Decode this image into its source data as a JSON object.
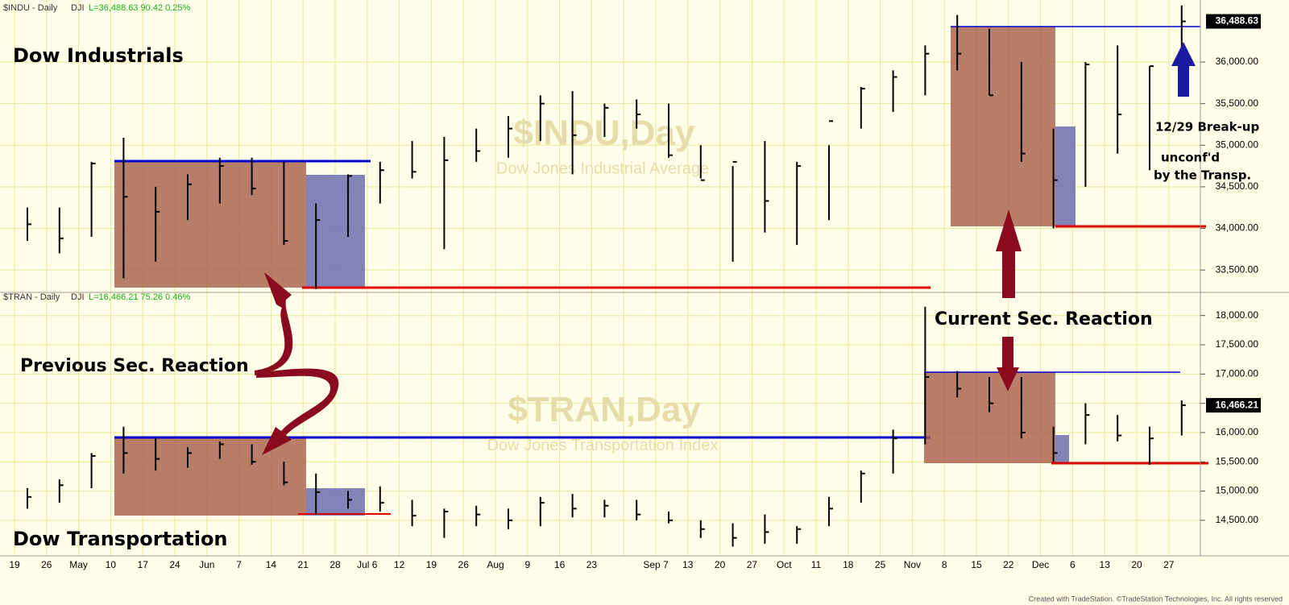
{
  "x_axis": {
    "categories": [
      "19",
      "26",
      "May",
      "10",
      "17",
      "24",
      "Jun",
      "7",
      "14",
      "21",
      "28",
      "Jul 6",
      "12",
      "19",
      "26",
      "Aug",
      "9",
      "16",
      "23",
      null,
      "Sep 7",
      "13",
      "20",
      "27",
      "Oct",
      "11",
      "18",
      "25",
      "Nov",
      "8",
      "15",
      "22",
      "Dec",
      "6",
      "13",
      "20",
      "27"
    ]
  },
  "chart_data": [
    {
      "type": "ohlc",
      "symbol": "$INDU - Daily",
      "exchange": "DJI",
      "quote": "L=36,488.63  90.42  0.25%",
      "watermark": "$INDU,Day",
      "watermark_subtitle": "Dow Jones Industrial Average",
      "title": "Dow Industrials",
      "color": "#000000",
      "high": [
        34250,
        34250,
        34800,
        35090,
        34500,
        34650,
        34850,
        34850,
        34800,
        34300,
        34650,
        34800,
        35050,
        35100,
        35200,
        35350,
        35600,
        35650,
        35500,
        35550,
        35500,
        35000,
        34750,
        35050,
        34800,
        35000,
        35700,
        35900,
        36200,
        36565,
        36400,
        36000,
        35200,
        36000,
        36200,
        35950,
        36680
      ],
      "low": [
        33850,
        33700,
        33900,
        33400,
        33600,
        34100,
        34300,
        34400,
        33800,
        33270,
        33900,
        34300,
        34600,
        33750,
        34800,
        34850,
        35050,
        34650,
        35100,
        35200,
        34850,
        34600,
        33600,
        33950,
        33800,
        34100,
        35200,
        35400,
        35600,
        35900,
        35600,
        34800,
        34000,
        34500,
        34900,
        34700,
        35900
      ],
      "close": [
        34050,
        33880,
        34780,
        34380,
        34200,
        34530,
        34750,
        34480,
        33850,
        34100,
        34630,
        34700,
        34680,
        34820,
        34930,
        35200,
        35500,
        35120,
        35450,
        35370,
        34880,
        34580,
        34800,
        34330,
        34750,
        35290,
        35680,
        35820,
        36100,
        36100,
        35600,
        34900,
        34580,
        35970,
        35370,
        35950,
        36488.63
      ],
      "ylim": [
        33240,
        36610
      ],
      "yticks": [
        {
          "value": 33500,
          "label": "33,500.00"
        },
        {
          "value": 34000,
          "label": "34,000.00"
        },
        {
          "value": 34500,
          "label": "34,500.00"
        },
        {
          "value": 35000,
          "label": "35,000.00"
        },
        {
          "value": 35500,
          "label": "35,500.00"
        },
        {
          "value": 36000,
          "label": "36,000.00"
        }
      ],
      "last_price": {
        "value": 36488.63,
        "label": "36,488.63"
      }
    },
    {
      "type": "ohlc",
      "symbol": "$TRAN - Daily",
      "exchange": "DJI",
      "quote": "L=16,466.21  75.26  0.46%",
      "watermark": "$TRAN,Day",
      "watermark_subtitle": "Dow Jones Transportation Index",
      "title": "Dow Transportation",
      "color": "#000000",
      "high": [
        15050,
        15200,
        15650,
        16100,
        15900,
        15750,
        15850,
        15800,
        15500,
        15300,
        15000,
        15080,
        14850,
        14700,
        14750,
        14700,
        14900,
        14950,
        14850,
        14850,
        14650,
        14500,
        14450,
        14600,
        14400,
        14900,
        15350,
        16050,
        18150,
        17050,
        16950,
        16950,
        16100,
        16500,
        16300,
        16100,
        16550
      ],
      "low": [
        14700,
        14800,
        15050,
        15300,
        15350,
        15400,
        15550,
        15450,
        15100,
        14600,
        14700,
        14650,
        14400,
        14200,
        14400,
        14350,
        14400,
        14550,
        14550,
        14500,
        14450,
        14200,
        14050,
        14100,
        14100,
        14400,
        14800,
        15300,
        15800,
        16600,
        16350,
        15900,
        15500,
        15800,
        15850,
        15450,
        15950
      ],
      "close": [
        14900,
        15100,
        15600,
        15650,
        15550,
        15650,
        15800,
        15500,
        15150,
        14980,
        14850,
        14800,
        14580,
        14650,
        14600,
        14500,
        14800,
        14700,
        14750,
        14600,
        14500,
        14350,
        14200,
        14300,
        14350,
        14700,
        15300,
        15900,
        16950,
        16750,
        16500,
        16000,
        15650,
        16300,
        15950,
        15900,
        16466.21
      ],
      "ylim": [
        13920,
        18230
      ],
      "yticks": [
        {
          "value": 14500,
          "label": "14,500.00"
        },
        {
          "value": 15000,
          "label": "15,000.00"
        },
        {
          "value": 15500,
          "label": "15,500.00"
        },
        {
          "value": 16000,
          "label": "16,000.00"
        },
        {
          "value": 16500,
          "label": "16,500.00"
        },
        {
          "value": 17000,
          "label": "17,000.00"
        },
        {
          "value": 17500,
          "label": "17,500.00"
        },
        {
          "value": 18000,
          "label": "18,000.00"
        }
      ],
      "last_price": {
        "value": 16466.21,
        "label": "16,466.21"
      }
    }
  ],
  "annotations": {
    "previous": "Previous Sec. Reaction",
    "current": "Current Sec. Reaction",
    "breakup_1": "12/29 Break-up",
    "breakup_2": "unconf'd",
    "breakup_3": "by the Transp."
  },
  "footer": "Created with TradeStation. ©TradeStation Technologies, Inc. All rights reserved"
}
